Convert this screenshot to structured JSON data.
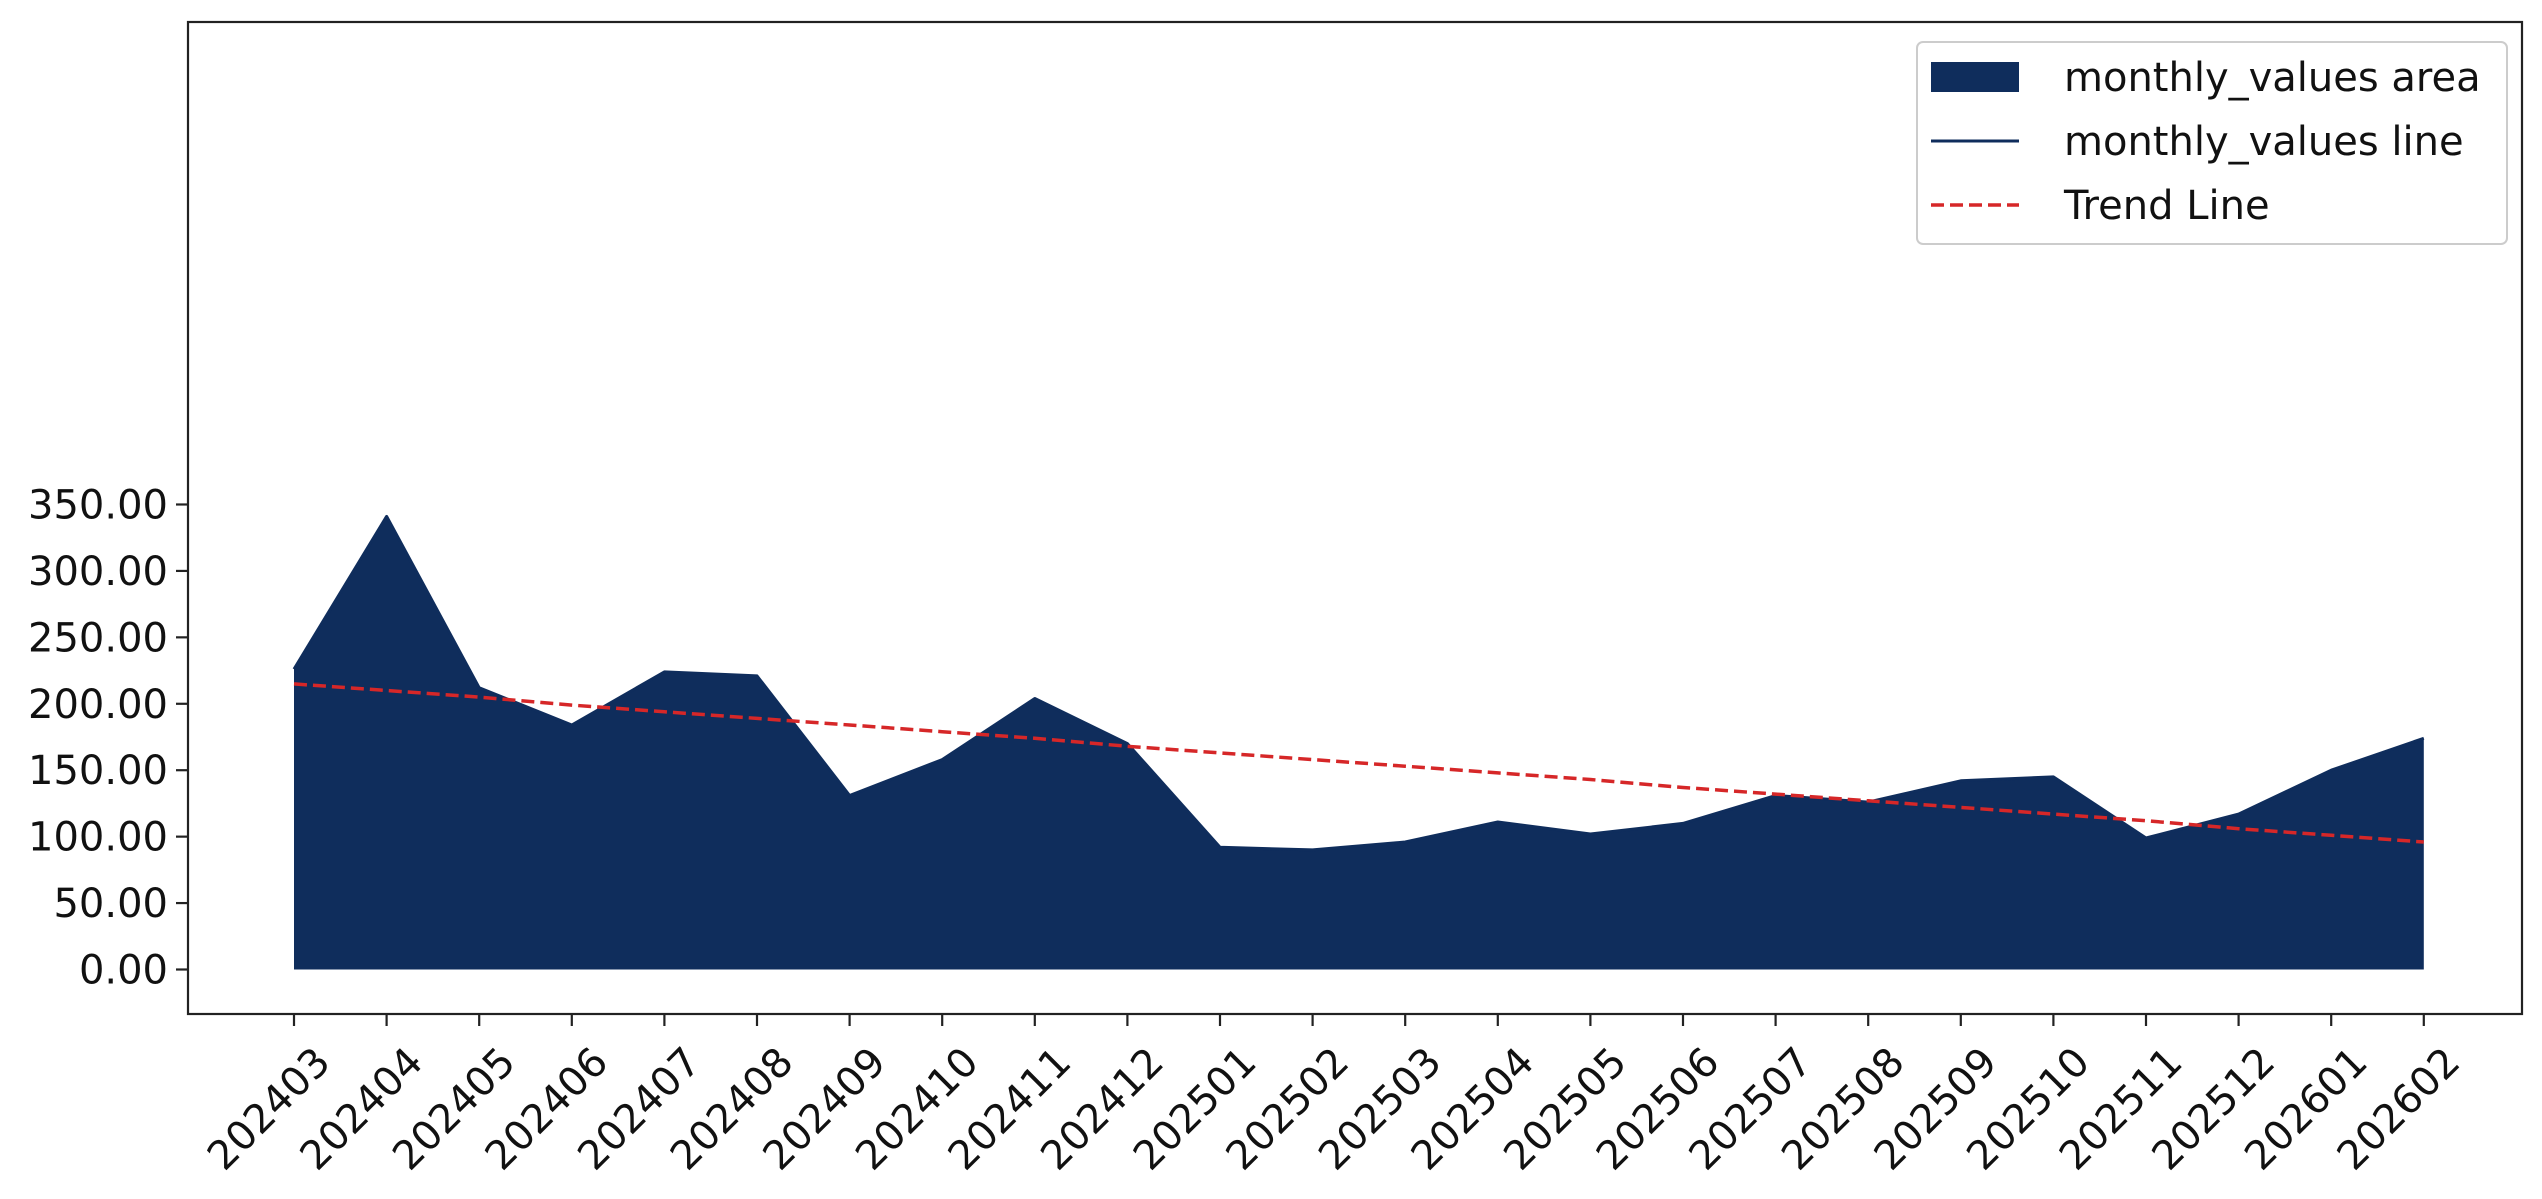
{
  "chart_data": {
    "type": "area",
    "title": "",
    "xlabel": "",
    "ylabel": "",
    "categories": [
      "202403",
      "202404",
      "202405",
      "202406",
      "202407",
      "202408",
      "202409",
      "202410",
      "202411",
      "202412",
      "202501",
      "202502",
      "202503",
      "202504",
      "202505",
      "202506",
      "202507",
      "202508",
      "202509",
      "202510",
      "202511",
      "202512",
      "202601",
      "202602"
    ],
    "series": [
      {
        "name": "monthly_values area",
        "kind": "area",
        "color": "#0f2d5c",
        "values": [
          226,
          341,
          212,
          184,
          224,
          221,
          131,
          158,
          204,
          170,
          92,
          90,
          96,
          111,
          102,
          110,
          131,
          126,
          142,
          145,
          99,
          117,
          150,
          174
        ]
      },
      {
        "name": "monthly_values line",
        "kind": "line",
        "color": "#0f2d5c",
        "values": [
          226,
          341,
          212,
          184,
          224,
          221,
          131,
          158,
          204,
          170,
          92,
          90,
          96,
          111,
          102,
          110,
          131,
          126,
          142,
          145,
          99,
          117,
          150,
          174
        ]
      },
      {
        "name": "Trend Line",
        "kind": "line",
        "style": "dashed",
        "color": "#d62728",
        "values": [
          215,
          210,
          205,
          199,
          194,
          189,
          184,
          179,
          174,
          168,
          163,
          158,
          153,
          148,
          143,
          137,
          132,
          127,
          122,
          117,
          112,
          106,
          101,
          96
        ]
      }
    ],
    "yticks": [
      "0.00",
      "50.00",
      "100.00",
      "150.00",
      "200.00",
      "250.00",
      "300.00",
      "350.00"
    ],
    "ytick_values": [
      0,
      50,
      100,
      150,
      200,
      250,
      300,
      350
    ],
    "ylim": [
      -17,
      357
    ],
    "grid": false,
    "legend_position": "top-right"
  }
}
